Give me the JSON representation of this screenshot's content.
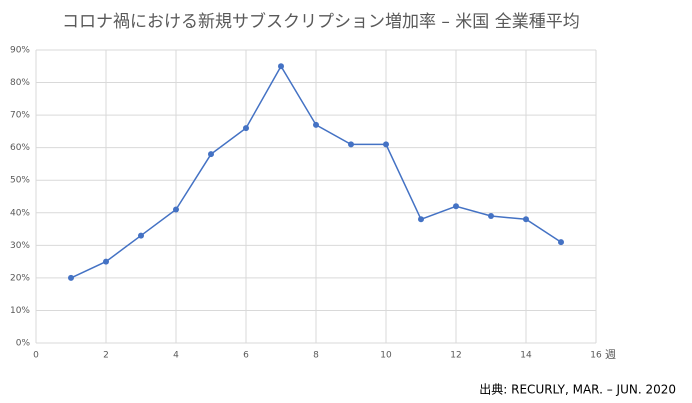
{
  "chart_data": {
    "type": "line",
    "title": "コロナ禍における新規サブスクリプション増加率 –  米国 全業種平均",
    "x": [
      1,
      2,
      3,
      4,
      5,
      6,
      7,
      8,
      9,
      10,
      11,
      12,
      13,
      14,
      15
    ],
    "series": [
      {
        "name": "新規サブスクリプション増加率",
        "color": "#4472c4",
        "values": [
          20,
          25,
          33,
          41,
          58,
          66,
          85,
          67,
          61,
          61,
          38,
          42,
          39,
          38,
          31
        ]
      }
    ],
    "xlim": [
      0,
      16
    ],
    "xticks": [
      0,
      2,
      4,
      6,
      8,
      10,
      12,
      14,
      16
    ],
    "ylim": [
      0,
      90
    ],
    "yticks": [
      {
        "value": 0,
        "label": "0%"
      },
      {
        "value": 10,
        "label": "10%"
      },
      {
        "value": 20,
        "label": "20%"
      },
      {
        "value": 30,
        "label": "30%"
      },
      {
        "value": 40,
        "label": "40%"
      },
      {
        "value": 50,
        "label": "50%"
      },
      {
        "value": 60,
        "label": "60%"
      },
      {
        "value": 70,
        "label": "70%"
      },
      {
        "value": 80,
        "label": "80%"
      },
      {
        "value": 90,
        "label": "90%"
      }
    ],
    "x_label": "週",
    "grid": true,
    "source": "出典: RECURLY, MAR. – JUN. 2020"
  }
}
